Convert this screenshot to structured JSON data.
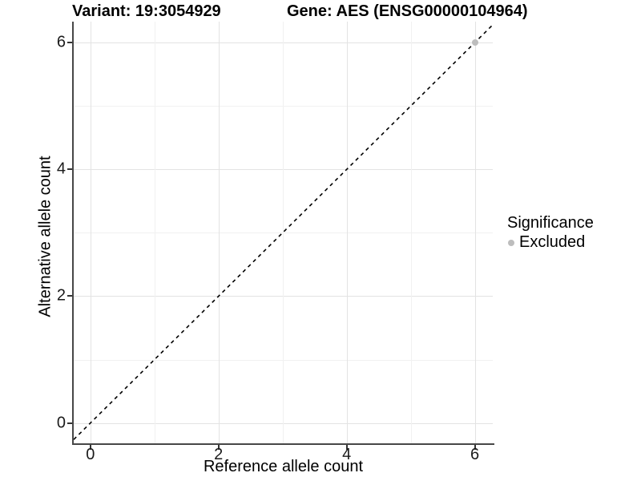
{
  "chart_data": {
    "type": "scatter",
    "titles": {
      "variant": "Variant: 19:3054929",
      "gene": "Gene: AES (ENSG00000104964)"
    },
    "xlabel": "Reference allele count",
    "ylabel": "Alternative allele count",
    "xlim": [
      -0.26,
      6.28
    ],
    "ylim": [
      -0.32,
      6.33
    ],
    "x_ticks": [
      0,
      2,
      4,
      6
    ],
    "y_ticks": [
      0,
      2,
      4,
      6
    ],
    "x_grid": [
      0,
      1,
      2,
      3,
      4,
      5,
      6
    ],
    "y_grid": [
      0,
      1,
      2,
      3,
      4,
      5,
      6
    ],
    "minor_grid": [
      1,
      3,
      5
    ],
    "points": [
      {
        "x": 6,
        "y": 6,
        "series": "Excluded"
      }
    ],
    "reference_line": {
      "type": "identity y=x",
      "style": "dashed",
      "color": "#000000"
    },
    "legend": {
      "title": "Significance",
      "position": "right",
      "items": [
        {
          "label": "Excluded",
          "color": "#bdbdbd"
        }
      ]
    },
    "grid_on": true,
    "colors": {
      "point": "#bdbdbd",
      "grid_major": "#e3e3e3",
      "grid_minor": "#f1f1f1",
      "axis_line": "#474747",
      "tick_mark": "#333333",
      "background": "#ffffff"
    }
  }
}
